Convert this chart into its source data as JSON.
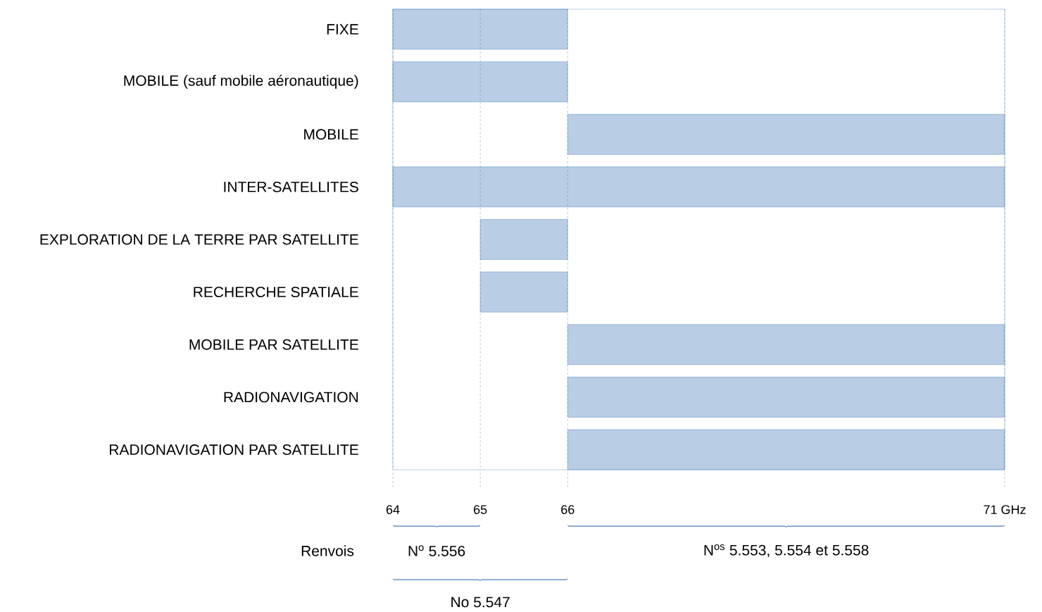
{
  "chart_data": {
    "type": "bar",
    "orientation": "horizontal",
    "categories": [
      "FIXE",
      "MOBILE (sauf mobile aéronautique)",
      "MOBILE",
      "INTER-SATELLITES",
      "EXPLORATION DE LA TERRE PAR SATELLITE",
      "RECHERCHE SPATIALE",
      "MOBILE PAR SATELLITE",
      "RADIONAVIGATION",
      "RADIONAVIGATION PAR SATELLITE"
    ],
    "values": [
      2,
      2,
      5,
      7,
      1,
      1,
      5,
      5,
      5
    ],
    "base": [
      64,
      64,
      66,
      64,
      65,
      65,
      66,
      66,
      66
    ],
    "color": "#b9cde5",
    "xlim": [
      64,
      71
    ],
    "xticks": [
      64,
      65,
      66,
      {
        "value": 71,
        "label": "71 GHz"
      }
    ],
    "grid": "x",
    "annotations": [
      "Renvois",
      "N$^{o}$ 5.556",
      "N$^{os}$ 5.553, 5.554 et 5.558",
      "No 5.547"
    ]
  }
}
